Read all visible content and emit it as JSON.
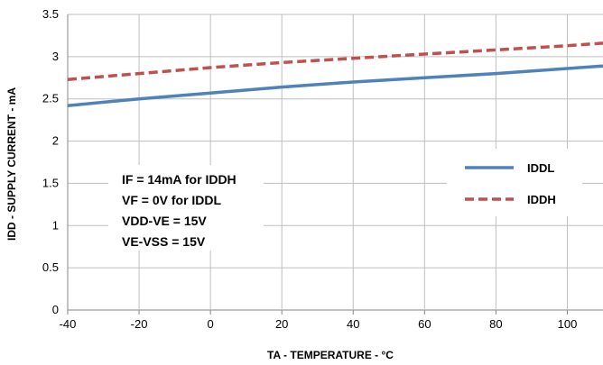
{
  "chart_data": {
    "type": "line",
    "xlabel": "TA - TEMPERATURE - °C",
    "ylabel": "IDD - SUPPLY CURRENT - mA",
    "xlim": [
      -40,
      110
    ],
    "ylim": [
      0,
      3.5
    ],
    "x_ticks": [
      "-40",
      "-20",
      "0",
      "20",
      "40",
      "60",
      "80",
      "100"
    ],
    "y_ticks": [
      "0",
      "0.5",
      "1",
      "1.5",
      "2",
      "2.5",
      "3",
      "3.5"
    ],
    "grid": true,
    "legend_placement": "right",
    "series": [
      {
        "name": "IDDL",
        "color": "#4f81bd",
        "style": "solid",
        "x": [
          -40,
          -20,
          0,
          20,
          40,
          60,
          80,
          100,
          110
        ],
        "y": [
          2.42,
          2.5,
          2.57,
          2.64,
          2.7,
          2.75,
          2.8,
          2.86,
          2.89
        ]
      },
      {
        "name": "IDDH",
        "color": "#c0504d",
        "style": "dashed",
        "x": [
          -40,
          -20,
          0,
          20,
          40,
          60,
          80,
          100,
          110
        ],
        "y": [
          2.73,
          2.8,
          2.87,
          2.93,
          2.98,
          3.03,
          3.08,
          3.13,
          3.16
        ]
      }
    ],
    "annotations": [
      "IF = 14mA for IDDH",
      "VF = 0V for IDDL",
      "VDD-VE = 15V",
      "VE-VSS = 15V"
    ]
  }
}
